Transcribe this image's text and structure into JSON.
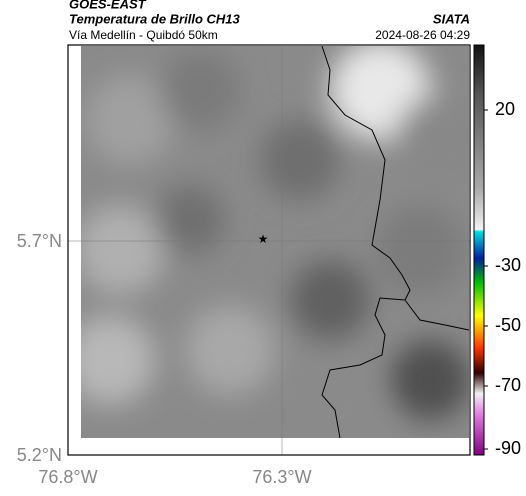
{
  "header": {
    "product": "GOES-EAST",
    "title": "Temperatura de Brillo CH13",
    "subtitle": "Vía Medellín - Quibdó 50km",
    "source": "SIATA",
    "datetime": "2024-08-26 04:29"
  },
  "axes": {
    "y_labels": [
      "5.7°N",
      "5.2°N"
    ],
    "x_labels": [
      "76.8°W",
      "76.3°W"
    ]
  },
  "colorbar": {
    "ticks": [
      20,
      -30,
      -50,
      -70,
      -90
    ]
  }
}
